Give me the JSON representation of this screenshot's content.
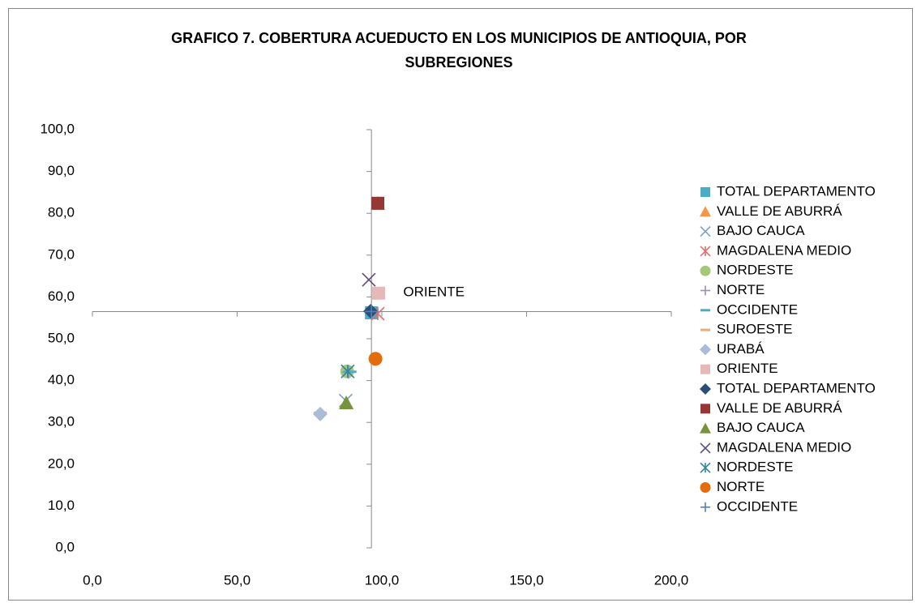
{
  "chart_data": {
    "type": "scatter",
    "title": "GRAFICO 7.  COBERTURA ACUEDUCTO EN LOS MUNICIPIOS DE ANTIOQUIA, POR SUBREGIONES",
    "xlim": [
      0,
      200
    ],
    "xticks": [
      {
        "value": 0,
        "label": "0,0"
      },
      {
        "value": 50,
        "label": "50,0"
      },
      {
        "value": 100,
        "label": "100,0"
      },
      {
        "value": 150,
        "label": "150,0"
      },
      {
        "value": 200,
        "label": "200,0"
      }
    ],
    "ylim": [
      0,
      100
    ],
    "yticks": [
      {
        "value": 0,
        "label": "0,0"
      },
      {
        "value": 10,
        "label": "10,0"
      },
      {
        "value": 20,
        "label": "20,0"
      },
      {
        "value": 30,
        "label": "30,0"
      },
      {
        "value": 40,
        "label": "40,0"
      },
      {
        "value": 50,
        "label": "50,0"
      },
      {
        "value": 60,
        "label": "60,0"
      },
      {
        "value": 70,
        "label": "70,0"
      },
      {
        "value": 80,
        "label": "80,0"
      },
      {
        "value": 90,
        "label": "90,0"
      },
      {
        "value": 100,
        "label": "100,0"
      }
    ],
    "x_axis_crosses_at": 56.5,
    "y_axis_crosses_at": 96.4,
    "annotation": {
      "text": "ORIENTE",
      "x": 99,
      "y": 61
    },
    "series": [
      {
        "name": "TOTAL DEPARTAMENTO",
        "color": "#4bacc6",
        "marker": "square",
        "x": [
          96.4
        ],
        "values": [
          56.2
        ]
      },
      {
        "name": "VALLE DE ABURRÁ",
        "color": "#f79646",
        "marker": "triangle",
        "x": [
          98.6
        ],
        "values": [
          82.4
        ]
      },
      {
        "name": "BAJO CAUCA",
        "color": "#7f9fc0",
        "marker": "x",
        "x": [
          87.5
        ],
        "values": [
          35.2
        ]
      },
      {
        "name": "MAGDALENA MEDIO",
        "color": "#d9706c",
        "marker": "asterisk",
        "x": [
          98.6
        ],
        "values": [
          56.0
        ]
      },
      {
        "name": "NORDESTE",
        "color": "#a5c878",
        "marker": "circle",
        "x": [
          88.0
        ],
        "values": [
          42.2
        ]
      },
      {
        "name": "NORTE",
        "color": "#9b8dc2",
        "marker": "plus",
        "x": [
          88.5
        ],
        "values": [
          42.0
        ]
      },
      {
        "name": "OCCIDENTE",
        "color": "#4bacc6",
        "marker": "dash",
        "x": [
          89.0
        ],
        "values": [
          42.1
        ]
      },
      {
        "name": "SUROESTE",
        "color": "#f5a86a",
        "marker": "dash",
        "x": [
          78.7
        ],
        "values": [
          32.3
        ]
      },
      {
        "name": "URABÁ",
        "color": "#a9bcd8",
        "marker": "diamond",
        "x": [
          78.7
        ],
        "values": [
          32.0
        ]
      },
      {
        "name": "ORIENTE",
        "color": "#e6b9b8",
        "marker": "square",
        "x": [
          98.9
        ],
        "values": [
          60.9
        ]
      },
      {
        "name": "TOTAL DEPARTAMENTO",
        "color": "#2c4d75",
        "marker": "diamond",
        "x": [
          96.1
        ],
        "values": [
          56.6
        ]
      },
      {
        "name": "VALLE DE ABURRÁ",
        "color": "#953735",
        "marker": "square",
        "x": [
          98.6
        ],
        "values": [
          82.4
        ]
      },
      {
        "name": "BAJO CAUCA",
        "color": "#77933c",
        "marker": "triangle",
        "x": [
          87.7
        ],
        "values": [
          34.7
        ]
      },
      {
        "name": "MAGDALENA MEDIO",
        "color": "#604a7b",
        "marker": "x",
        "x": [
          95.5
        ],
        "values": [
          64.1
        ]
      },
      {
        "name": "NORDESTE",
        "color": "#31859c",
        "marker": "asterisk",
        "x": [
          88.2
        ],
        "values": [
          42.2
        ]
      },
      {
        "name": "NORTE",
        "color": "#e46c0a",
        "marker": "circle",
        "x": [
          97.8
        ],
        "values": [
          45.2
        ]
      },
      {
        "name": "OCCIDENTE",
        "color": "#4f81bd",
        "marker": "plus",
        "x": [
          96.4
        ],
        "values": [
          56.5
        ]
      }
    ]
  }
}
